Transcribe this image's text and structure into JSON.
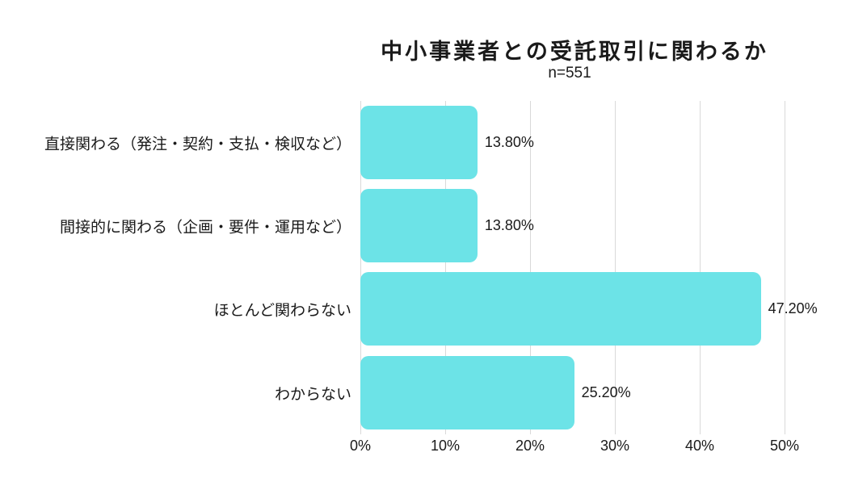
{
  "chart_data": {
    "type": "bar",
    "orientation": "horizontal",
    "title": "中小事業者との受託取引に関わるか",
    "subtitle": "n=551",
    "categories": [
      "直接関わる（発注・契約・支払・検収など）",
      "間接的に関わる（企画・要件・運用など）",
      "ほとんど関わらない",
      "わからない"
    ],
    "values": [
      13.8,
      13.8,
      47.2,
      25.2
    ],
    "value_labels": [
      "13.80%",
      "13.80%",
      "47.20%",
      "25.20%"
    ],
    "x_ticks": [
      "0%",
      "10%",
      "20%",
      "30%",
      "40%",
      "50%"
    ],
    "xlim": [
      0,
      50
    ],
    "xlabel": "",
    "ylabel": "",
    "grid": true,
    "legend": false,
    "bar_color": "#6ce3e7",
    "gridline_color": "#d9d9d9",
    "text_color": "#1a1a1a",
    "background_color": "#ffffff"
  }
}
